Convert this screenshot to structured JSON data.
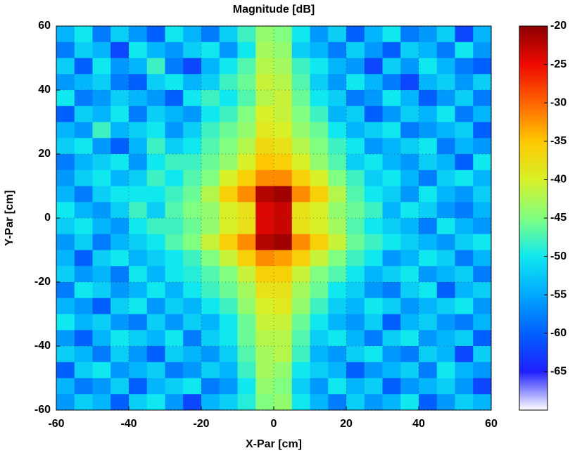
{
  "chart_data": {
    "type": "heatmap",
    "title": "Magnitude [dB]",
    "xlabel": "X-Par [cm]",
    "ylabel": "Y-Par [cm]",
    "x": [
      -57.5,
      -52.5,
      -47.5,
      -42.5,
      -37.5,
      -32.5,
      -27.5,
      -22.5,
      -17.5,
      -12.5,
      -7.5,
      -2.5,
      2.5,
      7.5,
      12.5,
      17.5,
      22.5,
      27.5,
      32.5,
      37.5,
      42.5,
      47.5,
      52.5,
      57.5
    ],
    "y": [
      57.5,
      52.5,
      47.5,
      42.5,
      37.5,
      32.5,
      27.5,
      22.5,
      17.5,
      12.5,
      7.5,
      2.5,
      -2.5,
      -7.5,
      -12.5,
      -17.5,
      -22.5,
      -27.5,
      -32.5,
      -37.5,
      -42.5,
      -47.5,
      -52.5,
      -57.5
    ],
    "z": [
      [
        -54,
        -50,
        -58,
        -52,
        -56,
        -60,
        -50,
        -54,
        -58,
        -52,
        -48,
        -44,
        -45,
        -50,
        -56,
        -52,
        -60,
        -54,
        -50,
        -58,
        -56,
        -52,
        -62,
        -54
      ],
      [
        -58,
        -52,
        -54,
        -62,
        -50,
        -54,
        -56,
        -52,
        -50,
        -56,
        -50,
        -43,
        -44,
        -52,
        -54,
        -58,
        -52,
        -56,
        -60,
        -52,
        -54,
        -58,
        -50,
        -56
      ],
      [
        -52,
        -60,
        -50,
        -56,
        -54,
        -48,
        -58,
        -62,
        -54,
        -50,
        -47,
        -42,
        -43,
        -48,
        -50,
        -54,
        -56,
        -62,
        -52,
        -56,
        -50,
        -54,
        -58,
        -60
      ],
      [
        -56,
        -54,
        -52,
        -58,
        -60,
        -52,
        -50,
        -54,
        -52,
        -48,
        -46,
        -41,
        -42,
        -47,
        -52,
        -56,
        -50,
        -54,
        -58,
        -62,
        -54,
        -52,
        -56,
        -52
      ],
      [
        -50,
        -58,
        -56,
        -52,
        -54,
        -56,
        -60,
        -50,
        -48,
        -50,
        -47,
        -42,
        -41,
        -46,
        -50,
        -52,
        -58,
        -56,
        -50,
        -54,
        -60,
        -56,
        -52,
        -58
      ],
      [
        -60,
        -52,
        -54,
        -50,
        -58,
        -52,
        -54,
        -56,
        -50,
        -48,
        -45,
        -40,
        -41,
        -45,
        -48,
        -54,
        -52,
        -60,
        -56,
        -52,
        -54,
        -50,
        -58,
        -54
      ],
      [
        -54,
        -56,
        -48,
        -54,
        -52,
        -50,
        -56,
        -52,
        -48,
        -46,
        -44,
        -39,
        -40,
        -44,
        -46,
        -50,
        -54,
        -52,
        -50,
        -58,
        -56,
        -54,
        -52,
        -60
      ],
      [
        -52,
        -50,
        -56,
        -60,
        -54,
        -48,
        -52,
        -50,
        -47,
        -45,
        -42,
        -37,
        -38,
        -42,
        -45,
        -48,
        -50,
        -56,
        -54,
        -52,
        -50,
        -58,
        -54,
        -56
      ],
      [
        -58,
        -54,
        -52,
        -50,
        -56,
        -50,
        -48,
        -48,
        -46,
        -44,
        -40,
        -35,
        -36,
        -40,
        -44,
        -47,
        -52,
        -50,
        -54,
        -56,
        -52,
        -54,
        -60,
        -50
      ],
      [
        -56,
        -52,
        -50,
        -54,
        -52,
        -48,
        -50,
        -47,
        -45,
        -40,
        -36,
        -32,
        -32,
        -36,
        -40,
        -45,
        -48,
        -52,
        -50,
        -54,
        -58,
        -52,
        -50,
        -54
      ],
      [
        -54,
        -58,
        -52,
        -50,
        -50,
        -50,
        -48,
        -46,
        -42,
        -36,
        -32,
        -22,
        -21,
        -32,
        -36,
        -42,
        -47,
        -50,
        -52,
        -56,
        -50,
        -54,
        -56,
        -52
      ],
      [
        -50,
        -54,
        -56,
        -52,
        -48,
        -52,
        -47,
        -45,
        -44,
        -40,
        -38,
        -24,
        -23,
        -38,
        -40,
        -44,
        -46,
        -48,
        -54,
        -50,
        -52,
        -56,
        -58,
        -54
      ],
      [
        -52,
        -50,
        -54,
        -56,
        -50,
        -48,
        -48,
        -46,
        -44,
        -40,
        -38,
        -24,
        -23,
        -38,
        -40,
        -43,
        -47,
        -50,
        -52,
        -54,
        -58,
        -50,
        -54,
        -56
      ],
      [
        -56,
        -52,
        -58,
        -54,
        -52,
        -50,
        -47,
        -45,
        -41,
        -36,
        -32,
        -22,
        -21,
        -32,
        -36,
        -41,
        -46,
        -48,
        -50,
        -52,
        -54,
        -56,
        -52,
        -50
      ],
      [
        -54,
        -60,
        -52,
        -50,
        -54,
        -52,
        -50,
        -48,
        -45,
        -41,
        -36,
        -32,
        -33,
        -36,
        -41,
        -45,
        -48,
        -50,
        -56,
        -54,
        -50,
        -52,
        -58,
        -54
      ],
      [
        -52,
        -56,
        -54,
        -58,
        -50,
        -54,
        -50,
        -49,
        -47,
        -45,
        -41,
        -36,
        -36,
        -41,
        -45,
        -47,
        -50,
        -54,
        -52,
        -50,
        -56,
        -54,
        -52,
        -58
      ],
      [
        -58,
        -50,
        -52,
        -56,
        -54,
        -50,
        -54,
        -50,
        -48,
        -46,
        -43,
        -38,
        -38,
        -43,
        -46,
        -50,
        -52,
        -56,
        -58,
        -52,
        -50,
        -60,
        -54,
        -52
      ],
      [
        -54,
        -56,
        -60,
        -52,
        -50,
        -56,
        -52,
        -54,
        -50,
        -48,
        -44,
        -40,
        -39,
        -44,
        -48,
        -52,
        -54,
        -50,
        -52,
        -56,
        -54,
        -52,
        -50,
        -56
      ],
      [
        -50,
        -54,
        -52,
        -56,
        -58,
        -52,
        -56,
        -52,
        -54,
        -50,
        -46,
        -41,
        -41,
        -46,
        -50,
        -54,
        -56,
        -52,
        -60,
        -54,
        -52,
        -56,
        -58,
        -54
      ],
      [
        -56,
        -60,
        -54,
        -50,
        -52,
        -54,
        -50,
        -58,
        -52,
        -50,
        -46,
        -42,
        -42,
        -47,
        -52,
        -50,
        -54,
        -58,
        -52,
        -50,
        -56,
        -54,
        -52,
        -60
      ],
      [
        -52,
        -54,
        -58,
        -52,
        -56,
        -60,
        -52,
        -54,
        -56,
        -52,
        -47,
        -43,
        -42,
        -48,
        -54,
        -56,
        -52,
        -50,
        -56,
        -58,
        -52,
        -54,
        -62,
        -52
      ],
      [
        -60,
        -52,
        -50,
        -56,
        -54,
        -52,
        -58,
        -56,
        -52,
        -54,
        -48,
        -43,
        -44,
        -50,
        -52,
        -54,
        -60,
        -56,
        -54,
        -52,
        -58,
        -50,
        -54,
        -56
      ],
      [
        -54,
        -58,
        -56,
        -52,
        -60,
        -54,
        -52,
        -50,
        -58,
        -56,
        -50,
        -44,
        -45,
        -52,
        -56,
        -50,
        -54,
        -52,
        -60,
        -56,
        -54,
        -52,
        -56,
        -62
      ],
      [
        -56,
        -52,
        -54,
        -60,
        -52,
        -50,
        -56,
        -62,
        -54,
        -52,
        -49,
        -45,
        -44,
        -50,
        -54,
        -58,
        -52,
        -56,
        -54,
        -50,
        -60,
        -56,
        -52,
        -54
      ]
    ],
    "xlim": [
      -60,
      60
    ],
    "ylim": [
      -60,
      60
    ],
    "xticks": [
      -60,
      -40,
      -20,
      0,
      20,
      40,
      60
    ],
    "yticks": [
      -60,
      -40,
      -20,
      0,
      20,
      40,
      60
    ],
    "clim": [
      -70,
      -20
    ],
    "cticks": [
      -65,
      -60,
      -55,
      -50,
      -45,
      -40,
      -35,
      -30,
      -25,
      -20
    ],
    "colormap": [
      "#ffffff",
      "#2020ff",
      "#0060ff",
      "#00a8ff",
      "#10e8f0",
      "#80ff80",
      "#d8f028",
      "#ffc800",
      "#ff6400",
      "#f00a00",
      "#8c0000"
    ],
    "grid": true
  }
}
